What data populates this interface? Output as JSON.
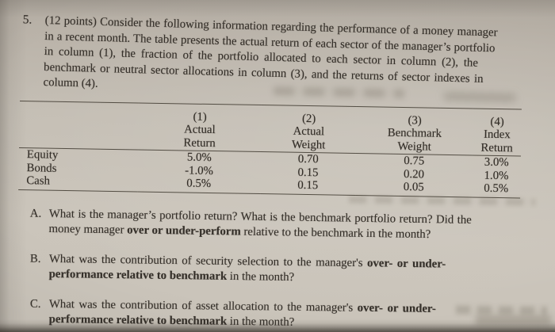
{
  "colors": {
    "paper": "#c6c0b6",
    "paper_dark_edge": "#9a948a",
    "ink": "#35302a",
    "table_rule": "#554f47"
  },
  "problem": {
    "number": "5.",
    "lines": [
      "(12 points) Consider the following information regarding the performance of a money manager",
      "in a recent month. The table presents the actual return of each sector of the manager’s portfolio",
      "in column (1), the fraction of the portfolio allocated to each sector in column (2), the",
      "benchmark or neutral sector allocations in column (3), and the returns of sector indexes in",
      "column (4)."
    ]
  },
  "table": {
    "columns": [
      {
        "num": "(1)",
        "line1": "Actual",
        "line2": "Return"
      },
      {
        "num": "(2)",
        "line1": "Actual",
        "line2": "Weight"
      },
      {
        "num": "(3)",
        "line1": "Benchmark",
        "line2": "Weight"
      },
      {
        "num": "(4)",
        "line1": "Index",
        "line2": "Return"
      }
    ],
    "rows": [
      {
        "label": "Equity",
        "actual_return": "5.0%",
        "actual_weight": "0.70",
        "benchmark_weight": "0.75",
        "index_return": "3.0%"
      },
      {
        "label": "Bonds",
        "actual_return": "-1.0%",
        "actual_weight": "0.15",
        "benchmark_weight": "0.20",
        "index_return": "1.0%"
      },
      {
        "label": "Cash",
        "actual_return": "0.5%",
        "actual_weight": "0.15",
        "benchmark_weight": "0.05",
        "index_return": "0.5%"
      }
    ]
  },
  "questions": [
    {
      "label": "A.",
      "line1_pre": "What is the manager’s portfolio return? What is the benchmark portfolio return? Did the",
      "line2_pre": "money manager ",
      "line2_bold": "over or under-perform",
      "line2_post": " relative to the benchmark in the month?"
    },
    {
      "label": "B.",
      "line1_pre": "What was the contribution of security selection to the manager's ",
      "line1_bold": "over- or under-",
      "line2_bold": "performance relative to benchmark",
      "line2_post": " in the month?"
    },
    {
      "label": "C.",
      "line1_pre": "What was the contribution of asset allocation to the manager's ",
      "line1_bold": "over- or under-",
      "line2_bold": "performance relative to benchmark",
      "line2_post": " in the month?"
    }
  ]
}
